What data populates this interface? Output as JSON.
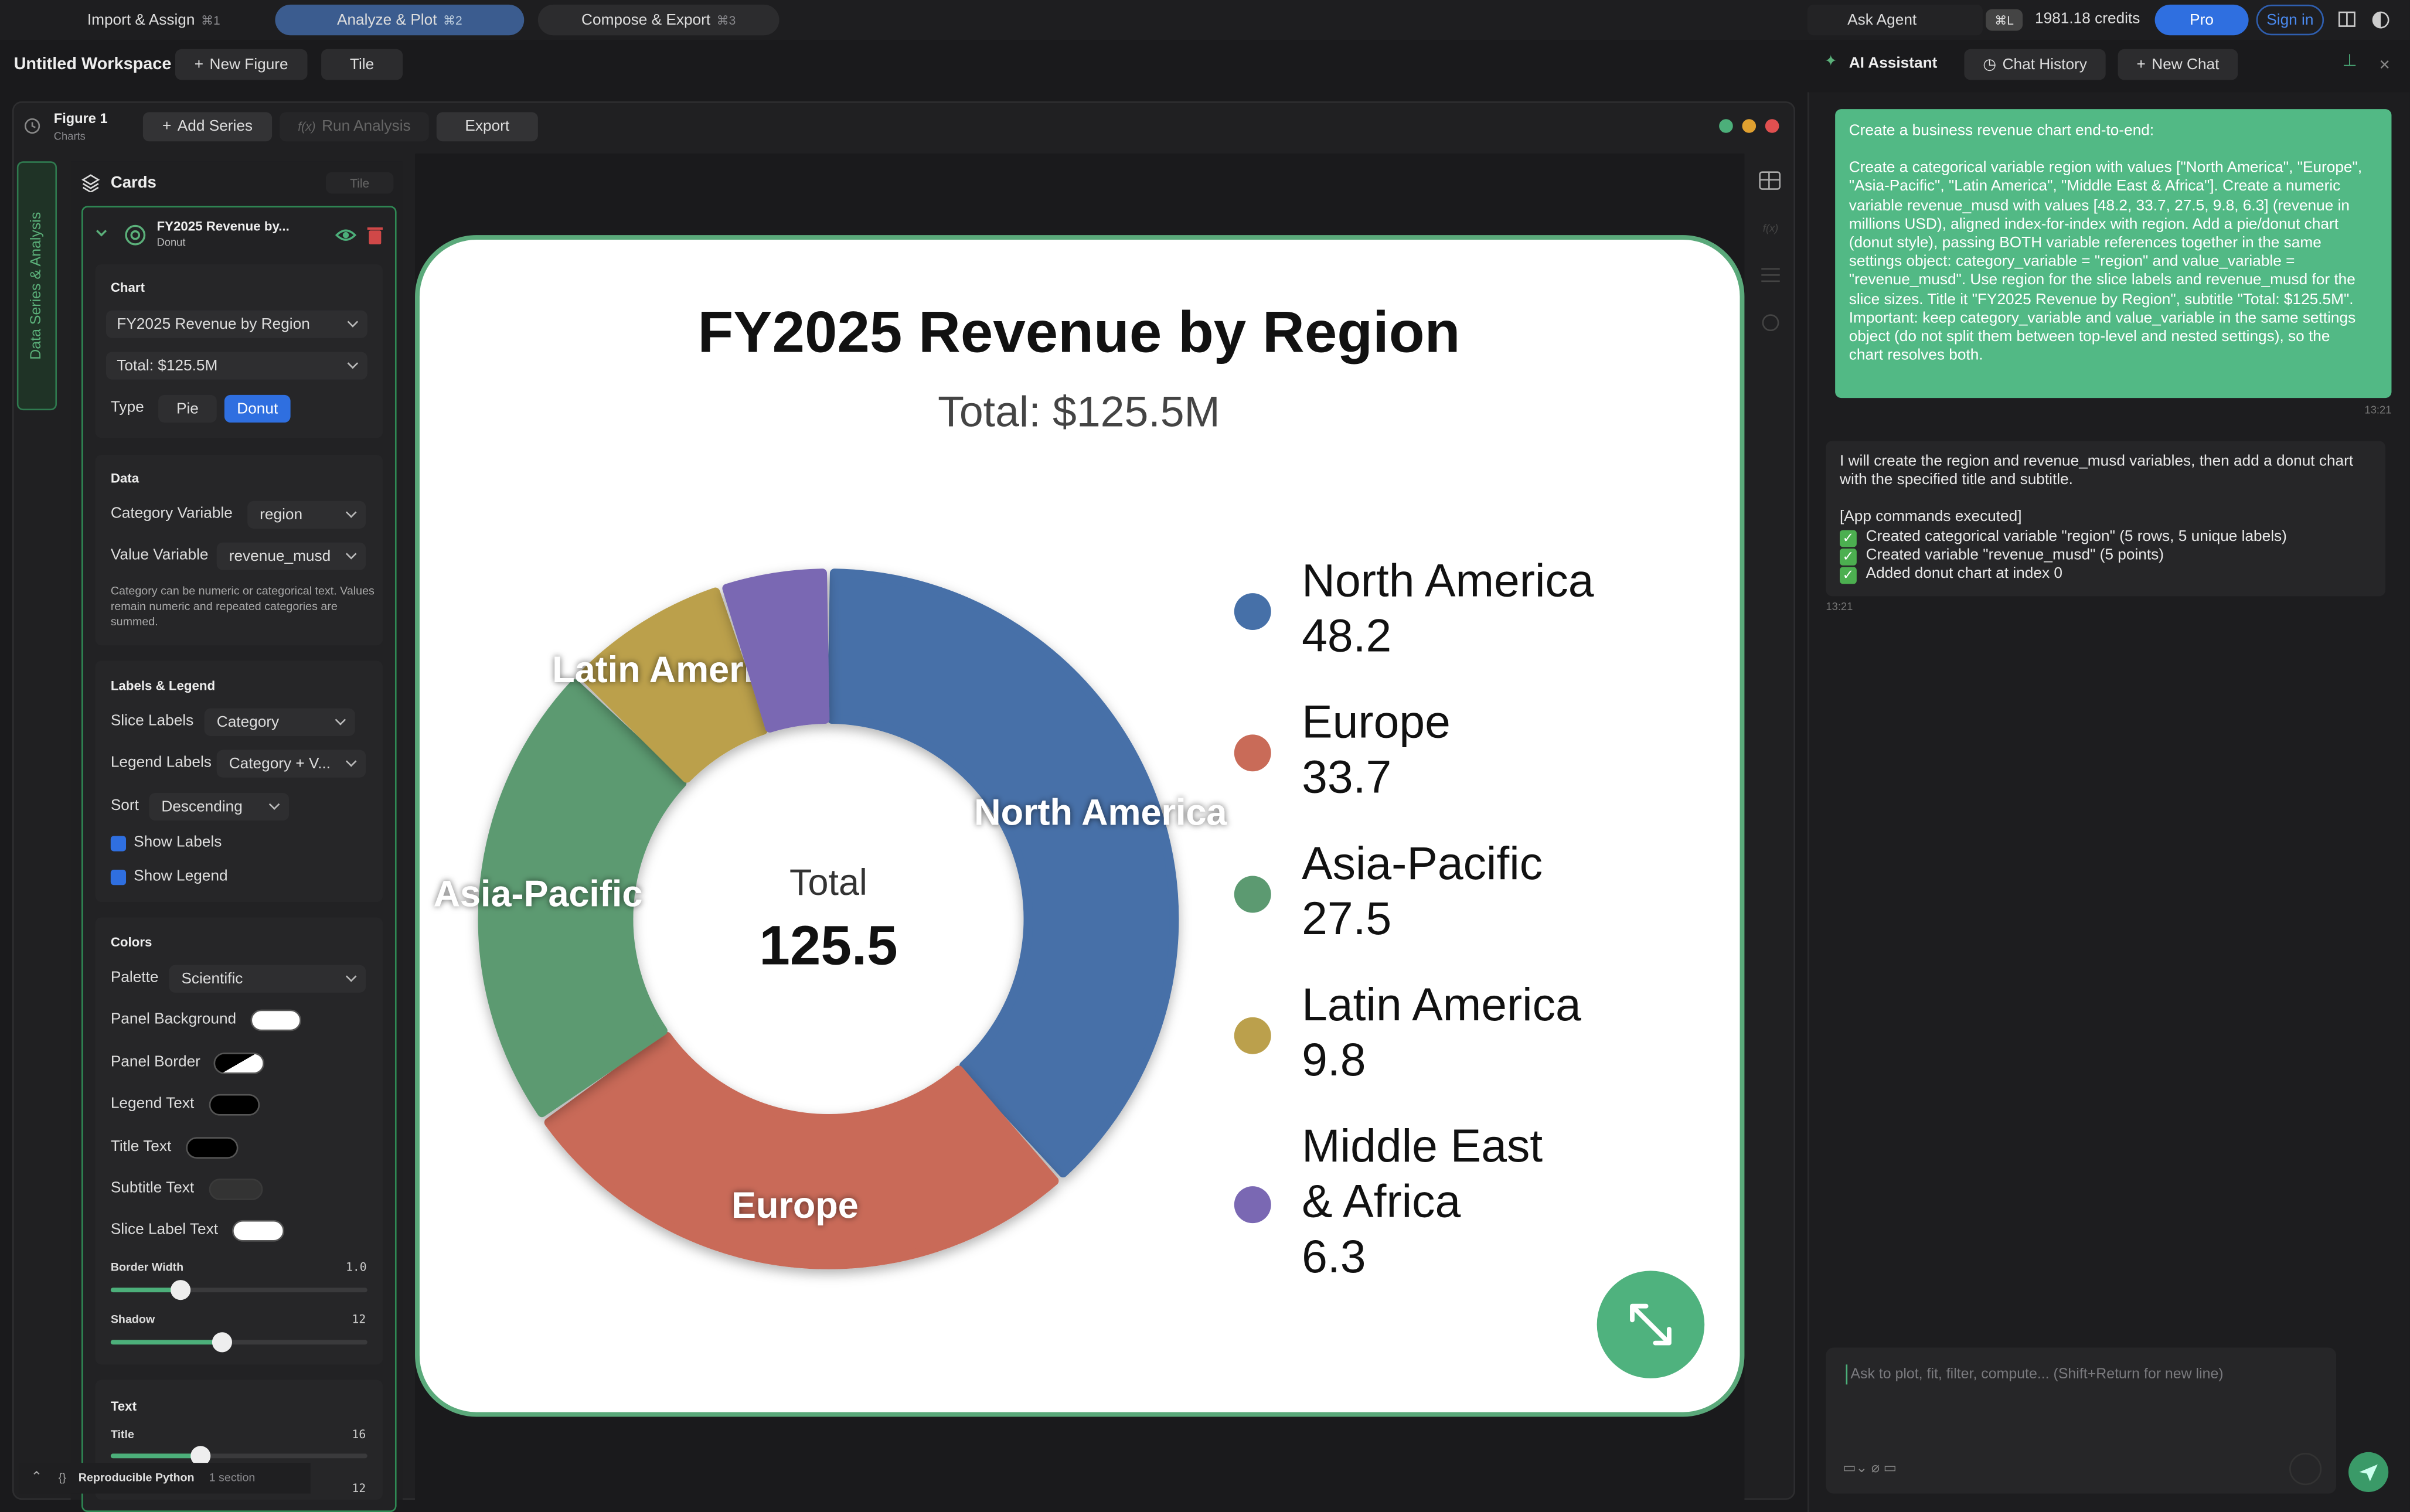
{
  "top_bar": {
    "tabs": [
      {
        "label": "Import & Assign",
        "shortcut": "⌘1"
      },
      {
        "label": "Analyze & Plot",
        "shortcut": "⌘2"
      },
      {
        "label": "Compose & Export",
        "shortcut": "⌘3"
      }
    ],
    "ask_agent": "Ask Agent",
    "agent_shortcut": "⌘L",
    "credits": "1981.18 credits",
    "plan": "Pro",
    "sign_in": "Sign in"
  },
  "workspace": {
    "title": "Untitled Workspace",
    "new_figure": "New Figure",
    "tile": "Tile"
  },
  "figure": {
    "name": "Figure 1",
    "kind": "Charts",
    "add_series": "Add Series",
    "run_analysis": "Run Analysis",
    "export": "Export",
    "side_tab": "Data Series & Analysis"
  },
  "cards": {
    "title": "Cards",
    "tile": "Tile",
    "card_title": "FY2025 Revenue by...",
    "card_kind": "Donut",
    "chart_section": {
      "heading": "Chart",
      "title_input": "FY2025 Revenue by Region",
      "subtitle_input": "Total: $125.5M",
      "type_label": "Type",
      "types": [
        "Pie",
        "Donut"
      ]
    },
    "data_section": {
      "heading": "Data",
      "category_label": "Category Variable",
      "category_value": "region",
      "value_label": "Value Variable",
      "value_value": "revenue_musd",
      "hint": "Category can be numeric or categorical text. Values remain numeric and repeated categories are summed."
    },
    "labels_section": {
      "heading": "Labels & Legend",
      "slice_labels": "Slice Labels",
      "slice_labels_value": "Category",
      "legend_labels": "Legend Labels",
      "legend_labels_value": "Category + V...",
      "sort": "Sort",
      "sort_value": "Descending",
      "show_labels": "Show Labels",
      "show_legend": "Show Legend"
    },
    "colors_section": {
      "heading": "Colors",
      "palette": "Palette",
      "palette_value": "Scientific",
      "items": [
        "Panel Background",
        "Panel Border",
        "Legend Text",
        "Title Text",
        "Subtitle Text",
        "Slice Label Text"
      ],
      "border_width": "Border Width",
      "border_width_value": "1.0",
      "shadow": "Shadow",
      "shadow_value": "12"
    },
    "text_section": {
      "heading": "Text",
      "title": "Title",
      "title_value": "16",
      "next_value": "12"
    }
  },
  "footer": {
    "label": "Reproducible Python",
    "sections": "1 section"
  },
  "chart_data": {
    "type": "donut",
    "title": "FY2025 Revenue by Region",
    "subtitle": "Total: $125.5M",
    "categories": [
      "North America",
      "Europe",
      "Asia-Pacific",
      "Latin America",
      "Middle East & Africa"
    ],
    "values": [
      48.2,
      33.7,
      27.5,
      9.8,
      6.3
    ],
    "colors": [
      "#4670a8",
      "#c96b58",
      "#5c9a71",
      "#bba04c",
      "#7a68b3"
    ],
    "center_label": "Total",
    "center_value": 125.5,
    "show_labels": true,
    "show_legend": true,
    "legend": "right"
  },
  "assistant": {
    "title": "AI Assistant",
    "chat_history": "Chat History",
    "new_chat": "New Chat",
    "user_message": [
      "Create a business revenue chart end-to-end:",
      "Create a categorical variable region with values [\"North America\", \"Europe\", \"Asia-Pacific\", \"Latin America\", \"Middle East & Africa\"]. Create a numeric variable revenue_musd with values [48.2, 33.7, 27.5, 9.8, 6.3] (revenue in millions USD), aligned index-for-index with region. Add a pie/donut chart (donut style), passing BOTH variable references together in the same settings object: category_variable = \"region\" and value_variable = \"revenue_musd\". Use region for the slice labels and revenue_musd for the slice sizes. Title it \"FY2025 Revenue by Region\", subtitle \"Total: $125.5M\".",
      "Important: keep category_variable and value_variable in the same settings object (do not split them between top-level and nested settings), so the chart resolves both."
    ],
    "user_time": "13:21",
    "reply": "I will create the region and revenue_musd variables, then add a donut chart with the specified title and subtitle.",
    "reply_header": "[App commands executed]",
    "reply_items": [
      "Created categorical variable \"region\" (5 rows, 5 unique labels)",
      "Created variable \"revenue_musd\" (5 points)",
      "Added donut chart at index 0"
    ],
    "reply_time": "13:21",
    "placeholder": "Ask to plot, fit, filter, compute... (Shift+Return for new line)"
  }
}
